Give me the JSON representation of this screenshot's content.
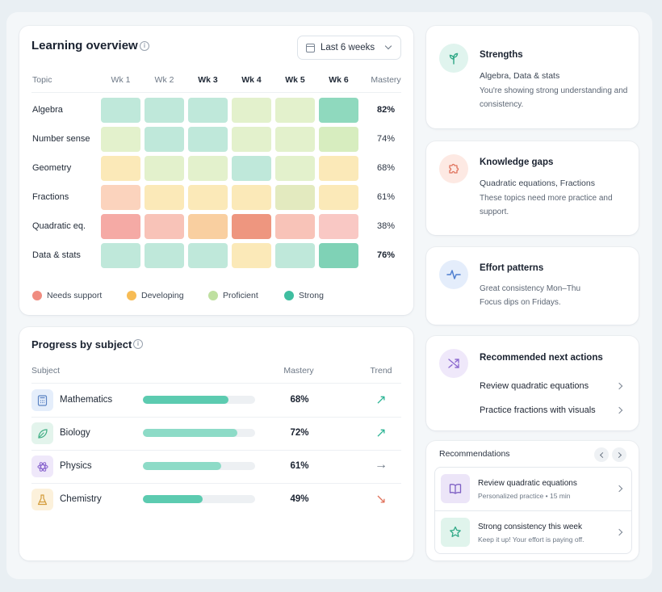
{
  "overview": {
    "title": "Learning overview",
    "range": "Last 6 weeks",
    "headers": {
      "topic": "Topic",
      "weeks": [
        "Wk 1",
        "Wk 2",
        "Wk 3",
        "Wk 4",
        "Wk 5",
        "Wk 6"
      ],
      "mastery": "Mastery"
    },
    "rows": [
      {
        "topic": "Algebra",
        "mastery": "82%",
        "levels": [
          "strong-lite",
          "strong-lite",
          "strong-lite",
          "proficient-lite",
          "proficient-lite",
          "strong"
        ]
      },
      {
        "topic": "Number sense",
        "mastery": "74%",
        "levels": [
          "proficient-lite",
          "strong-lite",
          "strong-lite",
          "proficient-lite",
          "proficient-lite",
          "proficient"
        ]
      },
      {
        "topic": "Geometry",
        "mastery": "68%",
        "levels": [
          "developing-lite",
          "proficient-lite",
          "proficient-lite",
          "strong-lite",
          "proficient-lite",
          "developing-lite"
        ]
      },
      {
        "topic": "Fractions",
        "mastery": "61%",
        "levels": [
          "support-lite",
          "developing-lite",
          "developing-lite",
          "developing-lite",
          "proficient-mid",
          "developing-lite"
        ]
      },
      {
        "topic": "Quadratic eq.",
        "mastery": "38%",
        "levels": [
          "support",
          "support-mid",
          "developing-mid",
          "support-strong",
          "support-mid",
          "support-lite2"
        ]
      },
      {
        "topic": "Data & stats",
        "mastery": "76%",
        "levels": [
          "strong-lite",
          "strong-lite",
          "strong-lite",
          "developing-lite",
          "strong-lite",
          "strong-mid"
        ]
      }
    ],
    "legend": [
      {
        "label": "Needs support",
        "color": "#f08c80"
      },
      {
        "label": "Developing",
        "color": "#f7bc55"
      },
      {
        "label": "Proficient",
        "color": "#bfe0a0"
      },
      {
        "label": "Strong",
        "color": "#3fbea0"
      }
    ],
    "level_colors": {
      "strong": "#8fd9be",
      "strong-mid": "#7fd2b6",
      "strong-lite": "#bfe8da",
      "proficient": "#d7edbf",
      "proficient-lite": "#e3f1cc",
      "proficient-mid": "#e3eabf",
      "developing-lite": "#fbe9b8",
      "developing-mid": "#f9cfa0",
      "support": "#f5aaa5",
      "support-lite": "#fbd3bd",
      "support-lite2": "#f9c8c4",
      "support-mid": "#f8c3b8",
      "support-strong": "#ee967f"
    }
  },
  "progress": {
    "title": "Progress by subject",
    "headers": {
      "subject": "Subject",
      "mastery": "Mastery",
      "trend": "Trend"
    },
    "rows": [
      {
        "name": "Mathematics",
        "icon": "calculator-icon",
        "mastery": "68%",
        "fill": 0.76,
        "trend": "↗",
        "trend_color": "#2fb596",
        "icon_bg": "#e5eefb",
        "icon_color": "#5c84c4"
      },
      {
        "name": "Biology",
        "icon": "leaf-icon",
        "mastery": "72%",
        "fill": 0.84,
        "trend": "↗",
        "trend_color": "#2fb596",
        "icon_bg": "#e3f4ec",
        "icon_color": "#3fae84"
      },
      {
        "name": "Physics",
        "icon": "atom-icon",
        "mastery": "61%",
        "fill": 0.7,
        "trend": "→",
        "trend_color": "#6b7684",
        "icon_bg": "#efe8fa",
        "icon_color": "#8d6bd0"
      },
      {
        "name": "Chemistry",
        "icon": "flask-icon",
        "mastery": "49%",
        "fill": 0.53,
        "trend": "↘",
        "trend_color": "#e0735d",
        "icon_bg": "#fcf1db",
        "icon_color": "#d39b3a"
      }
    ]
  },
  "strengths": {
    "title": "Strengths",
    "line": "Algebra, Data & stats",
    "sub": "You're showing strong understanding and consistency."
  },
  "gaps": {
    "title": "Knowledge gaps",
    "line": "Quadratic equations, Fractions",
    "sub": "These topics need more practice and support."
  },
  "effort": {
    "title": "Effort patterns",
    "sub": "Great consistency Mon–Thu Focus dips on Fridays."
  },
  "actions": {
    "title": "Recommended next actions",
    "items": [
      "Review quadratic equations",
      "Practice fractions with visuals"
    ]
  },
  "recommendations": {
    "title": "Recommendations",
    "items": [
      {
        "title": "Review quadratic equations",
        "sub": "Personalized practice • 15 min"
      },
      {
        "title": "Strong consistency this week",
        "sub": "Keep it up! Your effort is paying off."
      }
    ]
  }
}
